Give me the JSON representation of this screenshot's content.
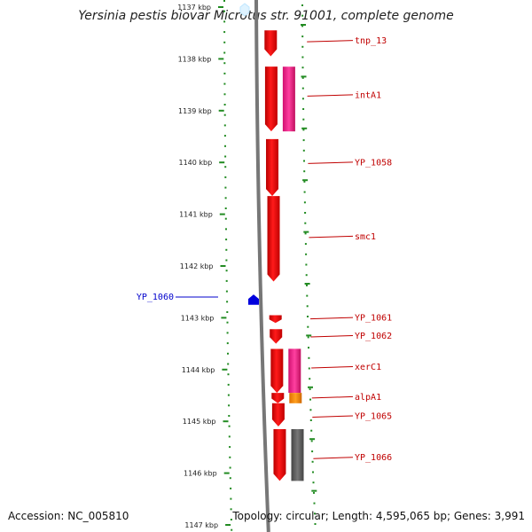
{
  "title": "Yersinia pestis biovar Microtus str. 91001, complete genome",
  "footer": {
    "accession": "Accession: NC_005810",
    "topology": "Topology: circular; Length: 4,595,065 bp; Genes: 3,991"
  },
  "colors": {
    "forward_gene": "#ff0000",
    "pink_feature": "#ff3399",
    "orange_feature": "#ff9900",
    "gray_feature": "#666666",
    "reverse_gene": "#0000dd",
    "scale_green": "#228b22",
    "backbone": "#777777"
  },
  "chart_data": {
    "type": "genome-map",
    "scale_labels": [
      "1137 kbp",
      "1138 kbp",
      "1139 kbp",
      "1140 kbp",
      "1141 kbp",
      "1142 kbp",
      "1143 kbp",
      "1144 kbp",
      "1145 kbp",
      "1146 kbp",
      "1147 kbp"
    ],
    "scale_values_kbp": [
      1137,
      1138,
      1139,
      1140,
      1141,
      1142,
      1143,
      1144,
      1145,
      1146,
      1147
    ],
    "genes": [
      {
        "name": "tnp_13",
        "start_kbp": 1137.45,
        "end_kbp": 1137.95,
        "strand": "+"
      },
      {
        "name": "intA1",
        "start_kbp": 1138.15,
        "end_kbp": 1139.4,
        "strand": "+"
      },
      {
        "name": "YP_1058",
        "start_kbp": 1139.55,
        "end_kbp": 1140.65,
        "strand": "+"
      },
      {
        "name": "smc1",
        "start_kbp": 1140.65,
        "end_kbp": 1142.3,
        "strand": "+"
      },
      {
        "name": "YP_1060",
        "start_kbp": 1142.55,
        "end_kbp": 1142.75,
        "strand": "-"
      },
      {
        "name": "YP_1061",
        "start_kbp": 1142.95,
        "end_kbp": 1143.1,
        "strand": "+"
      },
      {
        "name": "YP_1062",
        "start_kbp": 1143.22,
        "end_kbp": 1143.5,
        "strand": "+"
      },
      {
        "name": "xerC1",
        "start_kbp": 1143.6,
        "end_kbp": 1144.45,
        "strand": "+"
      },
      {
        "name": "alpA1",
        "start_kbp": 1144.45,
        "end_kbp": 1144.65,
        "strand": "+"
      },
      {
        "name": "YP_1065",
        "start_kbp": 1144.65,
        "end_kbp": 1145.1,
        "strand": "+"
      },
      {
        "name": "YP_1066",
        "start_kbp": 1145.15,
        "end_kbp": 1146.15,
        "strand": "+"
      }
    ],
    "features": [
      {
        "gene": "intA1",
        "kind": "pink",
        "start_kbp": 1138.15,
        "end_kbp": 1139.4
      },
      {
        "gene": "xerC1",
        "kind": "pink",
        "start_kbp": 1143.6,
        "end_kbp": 1144.45
      },
      {
        "gene": "alpA1",
        "kind": "orange",
        "start_kbp": 1144.45,
        "end_kbp": 1144.65
      },
      {
        "gene": "YP_1066",
        "kind": "gray",
        "start_kbp": 1145.15,
        "end_kbp": 1146.15
      }
    ],
    "label_kbp": {
      "tnp_13": 1137.67,
      "intA1": 1138.72,
      "YP_1058": 1140.02,
      "smc1": 1141.45,
      "YP_1060": 1142.6,
      "YP_1061": 1143.02,
      "YP_1062": 1143.37,
      "xerC1": 1143.97,
      "alpA1": 1144.55,
      "YP_1065": 1144.92,
      "YP_1066": 1145.72
    }
  }
}
